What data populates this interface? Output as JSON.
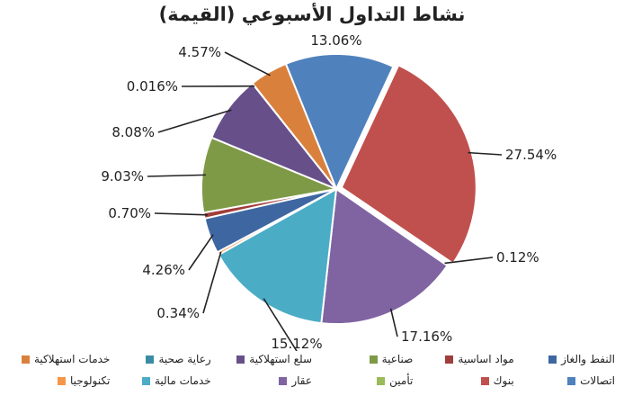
{
  "chart_data": {
    "type": "pie",
    "title": "نشاط التداول الأسبوعي (القيمة)",
    "slices": [
      {
        "name": "اتصالات",
        "value": 13.06,
        "label": "13.06%",
        "color": "#4F81BD"
      },
      {
        "name": "بنوك",
        "value": 27.54,
        "label": "27.54%",
        "color": "#C0504D"
      },
      {
        "name": "تأمين",
        "value": 0.12,
        "label": "0.12%",
        "color": "#9BBB59"
      },
      {
        "name": "عقار",
        "value": 17.16,
        "label": "17.16%",
        "color": "#8064A2"
      },
      {
        "name": "خدمات مالية",
        "value": 15.12,
        "label": "15.12%",
        "color": "#4BACC6"
      },
      {
        "name": "تكنولوجيا",
        "value": 0.34,
        "label": "0.34%",
        "color": "#F79646"
      },
      {
        "name": "النفط والغاز",
        "value": 4.26,
        "label": "4.26%",
        "color": "#3E67A2"
      },
      {
        "name": "مواد اساسية",
        "value": 0.7,
        "label": "0.70%",
        "color": "#A13D3B"
      },
      {
        "name": "صناعية",
        "value": 9.03,
        "label": "9.03%",
        "color": "#7E9A46"
      },
      {
        "name": "سلع استهلاكية",
        "value": 8.08,
        "label": "8.08%",
        "color": "#67508A"
      },
      {
        "name": "رعاية صحية",
        "value": 0.016,
        "label": "0.016%",
        "color": "#3A8CA5"
      },
      {
        "name": "خدمات استهلاكية",
        "value": 4.57,
        "label": "4.57%",
        "color": "#D9813C"
      }
    ],
    "legend": {
      "placement": "bottom",
      "rows": [
        [
          "النفط والغاز",
          "مواد اساسية",
          "صناعية",
          "سلع استهلاكية",
          "رعاية صحية",
          "خدمات استهلاكية"
        ],
        [
          "اتصالات",
          "بنوك",
          "تأمين",
          "عقار",
          "خدمات مالية",
          "تكنولوجيا"
        ]
      ]
    }
  }
}
